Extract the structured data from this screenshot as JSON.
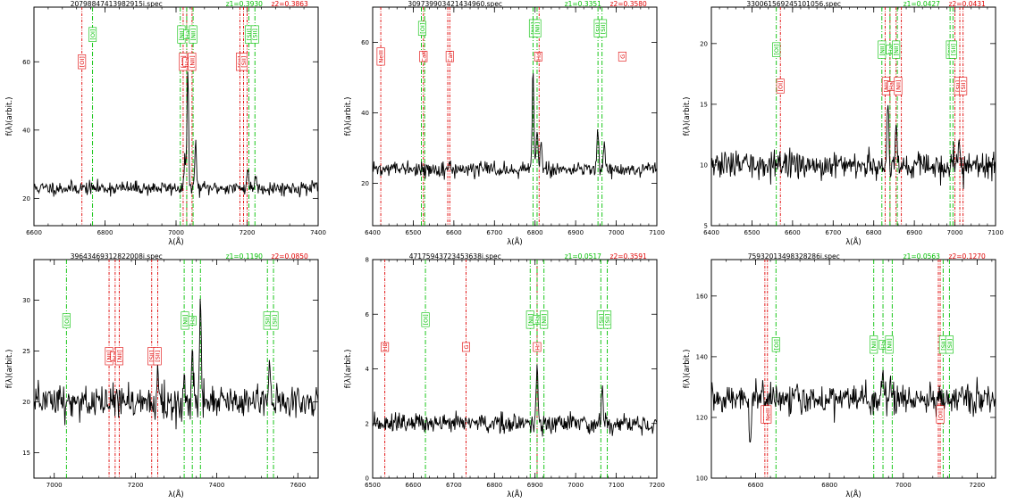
{
  "colors": {
    "spectrum": "#000000",
    "z1": "#00c000",
    "z2": "#e00000"
  },
  "chart_data": [
    {
      "type": "line",
      "title": "20798847413982915i.spec",
      "z1_label": "z1=0.3930",
      "z2_label": "z2=0.3863",
      "xlabel": "λ(Å)",
      "ylabel": "f(λ)(arbit.)",
      "xlim": [
        6600,
        7400
      ],
      "ylim": [
        12,
        76
      ],
      "xticks": [
        6600,
        6800,
        7000,
        7200,
        7400
      ],
      "yticks": [
        20,
        40,
        60
      ],
      "baseline": 23,
      "peaks": [
        [
          7033,
          33
        ],
        [
          7025,
          8
        ],
        [
          7055,
          13
        ],
        [
          7202,
          6
        ],
        [
          7225,
          4
        ]
      ],
      "noise": 1.0,
      "seed": 11,
      "red_lines": [
        6735,
        7020,
        7030,
        7045,
        7180,
        7190,
        7200
      ],
      "green_lines": [
        6765,
        7012,
        7030,
        7048,
        7205,
        7222
      ],
      "red_labels": [
        {
          "x": 6735,
          "y": 60,
          "text": "[OI]"
        },
        {
          "x": 7020,
          "y": 60,
          "text": "[NII]"
        },
        {
          "x": 7030,
          "y": 60,
          "text": "Ha"
        },
        {
          "x": 7045,
          "y": 60,
          "text": "[NII]"
        },
        {
          "x": 7180,
          "y": 60,
          "text": "[SII]"
        },
        {
          "x": 7190,
          "y": 60,
          "text": "[SII]"
        }
      ],
      "green_labels": [
        {
          "x": 6765,
          "y": 68,
          "text": "[OI]"
        },
        {
          "x": 7015,
          "y": 68,
          "text": "[NII]"
        },
        {
          "x": 7032,
          "y": 68,
          "text": "Ha"
        },
        {
          "x": 7048,
          "y": 68,
          "text": "[NII]"
        },
        {
          "x": 7205,
          "y": 68,
          "text": "[SII]"
        },
        {
          "x": 7222,
          "y": 68,
          "text": "[SII]"
        }
      ]
    },
    {
      "type": "line",
      "title": "309739903421434960.spec",
      "z1_label": "z1=0.3351",
      "z2_label": "z2=0.3580",
      "xlabel": "λ(Å)",
      "ylabel": "f(λ)(arbit.)",
      "xlim": [
        6400,
        7100
      ],
      "ylim": [
        8,
        70
      ],
      "xticks": [
        6400,
        6500,
        6600,
        6700,
        6800,
        6900,
        7000,
        7100
      ],
      "yticks": [
        20,
        40,
        60
      ],
      "baseline": 24,
      "peaks": [
        [
          6795,
          28
        ],
        [
          6805,
          12
        ],
        [
          6815,
          8
        ],
        [
          6955,
          10
        ],
        [
          6970,
          8
        ]
      ],
      "noise": 1.0,
      "seed": 22,
      "red_lines": [
        6420,
        6525,
        6585,
        6590,
        6810
      ],
      "green_lines": [
        6520,
        6528,
        6795,
        6805,
        6955,
        6965
      ],
      "red_labels": [
        {
          "x": 6420,
          "y": 56,
          "text": "NeIII"
        },
        {
          "x": 6525,
          "y": 56,
          "text": "CaK"
        },
        {
          "x": 6590,
          "y": 56,
          "text": "CaH"
        },
        {
          "x": 6808,
          "y": 56,
          "text": "Hd"
        },
        {
          "x": 7015,
          "y": 56,
          "text": "G"
        }
      ],
      "green_labels": [
        {
          "x": 6522,
          "y": 64,
          "text": "[OI]"
        },
        {
          "x": 6795,
          "y": 64,
          "text": "[NII]"
        },
        {
          "x": 6805,
          "y": 64,
          "text": "[NII]"
        },
        {
          "x": 6955,
          "y": 64,
          "text": "[SII]"
        },
        {
          "x": 6967,
          "y": 64,
          "text": "[SII]"
        }
      ]
    },
    {
      "type": "line",
      "title": "330061569245101056.spec",
      "z1_label": "z1=0.0427",
      "z2_label": "z2=0.0431",
      "xlabel": "λ(Å)",
      "ylabel": "f(λ)(arbit.)",
      "xlim": [
        6400,
        7100
      ],
      "ylim": [
        5,
        23
      ],
      "xticks": [
        6400,
        6500,
        6600,
        6700,
        6800,
        6900,
        7000,
        7100
      ],
      "yticks": [
        5,
        10,
        15,
        20
      ],
      "baseline": 10,
      "peaks": [
        [
          6835,
          5.5
        ],
        [
          6855,
          3.5
        ],
        [
          6995,
          1.3
        ],
        [
          7010,
          1.0
        ]
      ],
      "noise": 0.55,
      "seed": 33,
      "red_lines": [
        6570,
        6828,
        6840,
        6855,
        6868,
        7000,
        7012,
        7020
      ],
      "green_lines": [
        6560,
        6820,
        6840,
        6858,
        6988,
        6995
      ],
      "red_labels": [
        {
          "x": 6570,
          "y": 16.5,
          "text": "[OI]"
        },
        {
          "x": 6830,
          "y": 16.5,
          "text": "[NII]"
        },
        {
          "x": 6843,
          "y": 16.5,
          "text": "Ha"
        },
        {
          "x": 6860,
          "y": 16.5,
          "text": "[NII]"
        },
        {
          "x": 7008,
          "y": 16.5,
          "text": "[SII]"
        },
        {
          "x": 7020,
          "y": 16.5,
          "text": "[SII]"
        }
      ],
      "green_labels": [
        {
          "x": 6560,
          "y": 19.5,
          "text": "[OI]"
        },
        {
          "x": 6820,
          "y": 19.5,
          "text": "[NII]"
        },
        {
          "x": 6840,
          "y": 19.5,
          "text": "Ha"
        },
        {
          "x": 6855,
          "y": 19.5,
          "text": "[NII]"
        },
        {
          "x": 6988,
          "y": 19.5,
          "text": "[SII]"
        },
        {
          "x": 6995,
          "y": 19.5,
          "text": "[SII]"
        }
      ]
    },
    {
      "type": "line",
      "title": "39643469312822008i.spec",
      "z1_label": "z1=0.1190",
      "z2_label": "z2=0.0850",
      "xlabel": "λ(Å)",
      "ylabel": "f(λ)(arbit.)",
      "xlim": [
        6950,
        7650
      ],
      "ylim": [
        12.5,
        34
      ],
      "xticks": [
        7000,
        7200,
        7400,
        7600
      ],
      "yticks": [
        15,
        20,
        25,
        30
      ],
      "baseline": 20,
      "peaks": [
        [
          7360,
          10
        ],
        [
          7340,
          5
        ],
        [
          7255,
          3.5
        ],
        [
          7320,
          3
        ],
        [
          7530,
          4
        ]
      ],
      "noise": 0.9,
      "seed": 44,
      "red_lines": [
        7135,
        7150,
        7160,
        7240,
        7255
      ],
      "green_lines": [
        7030,
        7320,
        7340,
        7360,
        7525,
        7540
      ],
      "red_labels": [
        {
          "x": 7135,
          "y": 24.5,
          "text": "[NII]"
        },
        {
          "x": 7148,
          "y": 24.5,
          "text": "Ha"
        },
        {
          "x": 7160,
          "y": 24.5,
          "text": "[NII]"
        },
        {
          "x": 7240,
          "y": 24.5,
          "text": "[SII]"
        },
        {
          "x": 7254,
          "y": 24.5,
          "text": "[SII]"
        }
      ],
      "green_labels": [
        {
          "x": 7030,
          "y": 28,
          "text": "[OI]"
        },
        {
          "x": 7322,
          "y": 28,
          "text": "[NII]"
        },
        {
          "x": 7340,
          "y": 28,
          "text": "Ha"
        },
        {
          "x": 7525,
          "y": 28,
          "text": "[SII]"
        },
        {
          "x": 7542,
          "y": 28,
          "text": "[SII]"
        }
      ]
    },
    {
      "type": "line",
      "title": "47175943723453638i.spec",
      "z1_label": "z1=0.0517",
      "z2_label": "z2=0.3591",
      "xlabel": "λ(Å)",
      "ylabel": "f(λ)(arbit.)",
      "xlim": [
        6500,
        7200
      ],
      "ylim": [
        0,
        8
      ],
      "xticks": [
        6500,
        6600,
        6700,
        6800,
        6900,
        7000,
        7100,
        7200
      ],
      "yticks": [
        0,
        2,
        4,
        6,
        8
      ],
      "baseline": 2.0,
      "peaks": [
        [
          6905,
          2.1
        ],
        [
          7065,
          1.3
        ]
      ],
      "noise": 0.18,
      "seed": 55,
      "red_lines": [
        6530,
        6730,
        6905
      ],
      "green_lines": [
        6630,
        6888,
        6905,
        6922,
        7062,
        7078
      ],
      "red_labels": [
        {
          "x": 6530,
          "y": 4.8,
          "text": "H8"
        },
        {
          "x": 6730,
          "y": 4.8,
          "text": "G"
        },
        {
          "x": 6905,
          "y": 4.8,
          "text": "Hr"
        }
      ],
      "green_labels": [
        {
          "x": 6630,
          "y": 5.8,
          "text": "[OI]"
        },
        {
          "x": 6888,
          "y": 5.8,
          "text": "[NII]"
        },
        {
          "x": 6905,
          "y": 5.8,
          "text": "Ha"
        },
        {
          "x": 6922,
          "y": 5.8,
          "text": "[NII]"
        },
        {
          "x": 7062,
          "y": 5.8,
          "text": "[SII]"
        },
        {
          "x": 7078,
          "y": 5.8,
          "text": "[SII]"
        }
      ]
    },
    {
      "type": "line",
      "title": "75932013498328286i.spec",
      "z1_label": "z1=0.0563",
      "z2_label": "z2=0.1270",
      "xlabel": "λ(Å)",
      "ylabel": "f(λ)(arbit.)",
      "xlim": [
        6480,
        7250
      ],
      "ylim": [
        100,
        172
      ],
      "xticks": [
        6600,
        6800,
        7000,
        7200
      ],
      "yticks": [
        100,
        120,
        140,
        160
      ],
      "baseline": 126,
      "peaks": [
        [
          6945,
          10
        ],
        [
          6965,
          6
        ],
        [
          6585,
          -18
        ]
      ],
      "noise": 2.4,
      "seed": 66,
      "red_lines": [
        6625,
        6632,
        7095,
        7100
      ],
      "green_lines": [
        6655,
        6920,
        6945,
        6970,
        7108,
        7125
      ],
      "red_labels": [
        {
          "x": 6625,
          "y": 121,
          "text": "NeIII"
        },
        {
          "x": 6632,
          "y": 121,
          "text": "NeIII"
        },
        {
          "x": 7100,
          "y": 121,
          "text": "[OII]"
        }
      ],
      "green_labels": [
        {
          "x": 6655,
          "y": 144,
          "text": "[OI]"
        },
        {
          "x": 6920,
          "y": 144,
          "text": "[NII]"
        },
        {
          "x": 6945,
          "y": 144,
          "text": "Ha"
        },
        {
          "x": 6962,
          "y": 144,
          "text": "[NII]"
        },
        {
          "x": 7108,
          "y": 144,
          "text": "[SII]"
        },
        {
          "x": 7125,
          "y": 144,
          "text": "[SII]"
        }
      ]
    }
  ]
}
